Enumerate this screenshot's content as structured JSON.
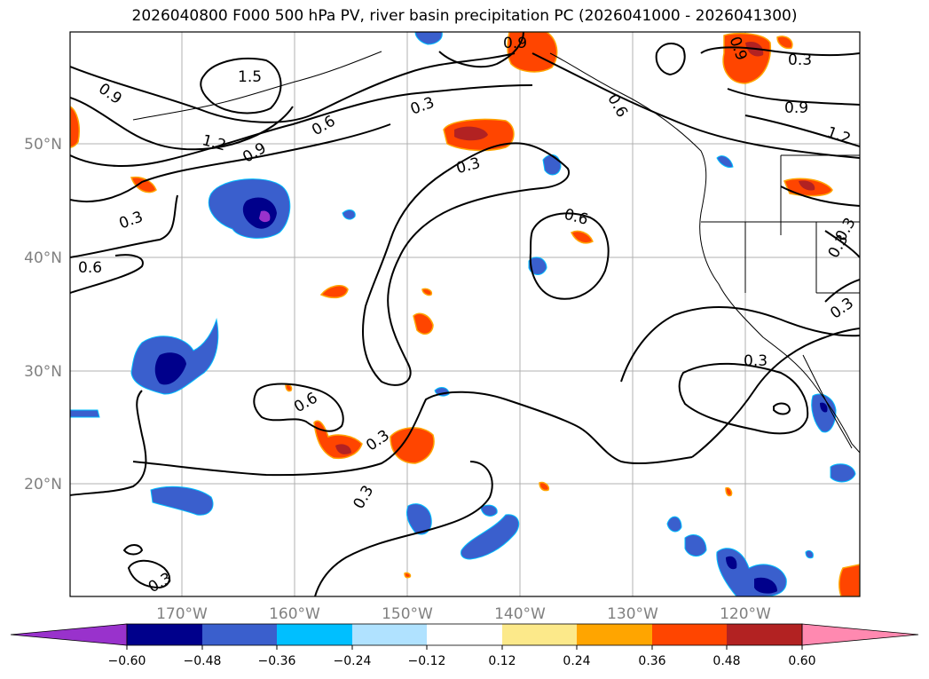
{
  "title": "2026040800 F000 500 hPa PV, river basin precipitation PC (2026041000 - 2026041300)",
  "map": {
    "lat_labels": [
      "50°N",
      "40°N",
      "30°N",
      "20°N"
    ],
    "lon_labels": [
      "170°W",
      "160°W",
      "150°W",
      "140°W",
      "130°W",
      "120°W"
    ],
    "contour_labels": [
      {
        "id": "c1",
        "text": "1.5"
      },
      {
        "id": "c2",
        "text": "0.9"
      },
      {
        "id": "c3",
        "text": "1.2"
      },
      {
        "id": "c4",
        "text": "0.9"
      },
      {
        "id": "c5",
        "text": "0.6"
      },
      {
        "id": "c6",
        "text": "0.3"
      },
      {
        "id": "c7",
        "text": "0.3"
      },
      {
        "id": "c8",
        "text": "0.6"
      },
      {
        "id": "c9",
        "text": "0.9"
      },
      {
        "id": "c10",
        "text": "0.6"
      },
      {
        "id": "c11",
        "text": "0.3"
      },
      {
        "id": "c12",
        "text": "0.9"
      },
      {
        "id": "c13",
        "text": "1.2"
      },
      {
        "id": "c14",
        "text": "0.3"
      },
      {
        "id": "c15",
        "text": "0.6"
      },
      {
        "id": "c16",
        "text": "0.6"
      },
      {
        "id": "c17",
        "text": "0.3"
      },
      {
        "id": "c18",
        "text": "0.3"
      },
      {
        "id": "c19",
        "text": "0.3"
      },
      {
        "id": "c20",
        "text": "0.3"
      },
      {
        "id": "c21",
        "text": "0.3"
      },
      {
        "id": "c22",
        "text": "0.3"
      },
      {
        "id": "c23",
        "text": "0.9"
      },
      {
        "id": "c24",
        "text": "0.3"
      }
    ]
  },
  "colorbar": {
    "ticks": [
      "−0.60",
      "−0.48",
      "−0.36",
      "−0.24",
      "−0.12",
      "0.12",
      "0.24",
      "0.36",
      "0.48",
      "0.60"
    ],
    "colors": [
      "#9932cc",
      "#00008b",
      "#3a5fcd",
      "#00bfff",
      "#b0e2ff",
      "#ffffff",
      "#fce98a",
      "#ffa500",
      "#ff4500",
      "#b22222",
      "#ff89b0"
    ]
  },
  "colors": {
    "neg_strong": "#00008b",
    "neg_mid": "#3a5fcd",
    "neg_light": "#00bfff",
    "pos_light": "#ffa500",
    "pos_mid": "#ff4500",
    "pos_strong": "#b22222",
    "grid": "#b0b0b0"
  }
}
